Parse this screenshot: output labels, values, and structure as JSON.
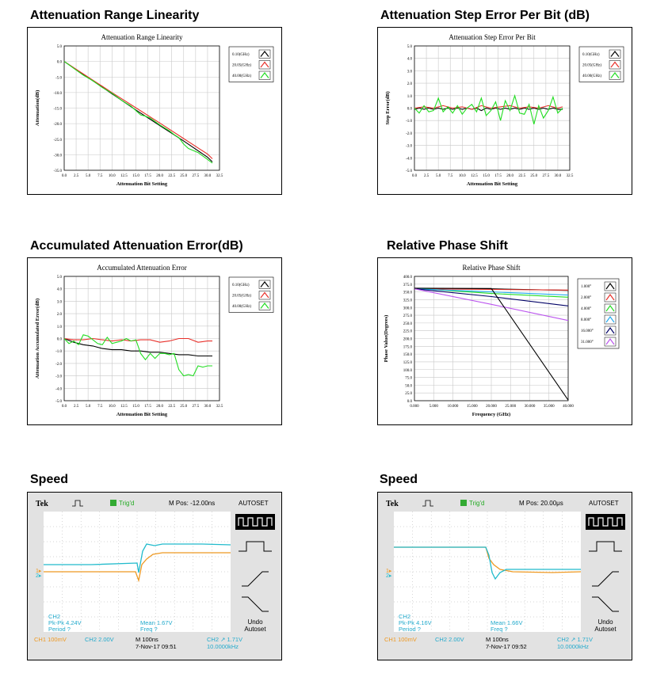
{
  "headings": {
    "h1": "Attenuation Range Linearity",
    "h2": "Attenuation Step Error Per Bit (dB)",
    "h3": "Accumulated Attenuation Error(dB)",
    "h4": "Relative Phase Shift",
    "h5": "Speed",
    "h6": "Speed"
  },
  "colors": {
    "black": "#000000",
    "red": "#e8302a",
    "green": "#22dd22",
    "blue": "#22aaee",
    "navy": "#000066",
    "purple": "#bb55ee",
    "cyan": "#22bbcc",
    "orange": "#ee9922",
    "scope_bg": "#ffffff",
    "scope_bezel": "#e2e2e2"
  },
  "chart_data": [
    {
      "type": "line",
      "title": "Attenuation Range Linearity",
      "xlabel": "Attenuation Bit Setting",
      "ylabel": "Attenuation(dB)",
      "xlim": [
        0,
        32.5
      ],
      "ylim": [
        -35,
        5
      ],
      "xticks": [
        "0.0",
        "2.5",
        "5.0",
        "7.5",
        "10.0",
        "12.5",
        "15.0",
        "17.5",
        "20.0",
        "22.5",
        "25.0",
        "27.5",
        "30.0",
        "32.5"
      ],
      "yticks": [
        "5.0",
        "0.0",
        "-5.0",
        "-10.0",
        "-15.0",
        "-20.0",
        "-25.0",
        "-30.0",
        "-35.0"
      ],
      "grid": true,
      "legend": "right",
      "series": [
        {
          "name": "0.10(GHz)",
          "color": "#000000",
          "x": [
            0,
            5,
            10,
            15,
            20,
            25,
            30,
            31
          ],
          "y": [
            0,
            -5.2,
            -10.4,
            -15.6,
            -20.6,
            -25.6,
            -30.8,
            -32.3
          ]
        },
        {
          "name": "20.05(GHz)",
          "color": "#e8302a",
          "x": [
            0,
            5,
            10,
            15,
            20,
            25,
            30,
            31
          ],
          "y": [
            0,
            -5,
            -10,
            -14.9,
            -19.8,
            -24.8,
            -29.8,
            -31.3
          ]
        },
        {
          "name": "40.00(GHz)",
          "color": "#22dd22",
          "x": [
            0,
            2,
            4,
            6,
            8,
            10,
            12,
            14,
            16,
            17,
            18,
            20,
            22,
            23,
            24,
            25,
            26,
            28,
            30,
            31
          ],
          "y": [
            0,
            -2.2,
            -4.4,
            -6.2,
            -8.4,
            -10.2,
            -12.5,
            -14.4,
            -17.2,
            -17.6,
            -18.2,
            -20.4,
            -22.3,
            -23.5,
            -24.5,
            -26.6,
            -28,
            -29.3,
            -31.5,
            -32.7
          ]
        }
      ]
    },
    {
      "type": "line",
      "title": "Attenuation Step Error Per Bit",
      "xlabel": "Attenuation Bit Setting",
      "ylabel": "Step Error(dB)",
      "xlim": [
        0,
        32.5
      ],
      "ylim": [
        -5,
        5
      ],
      "xticks": [
        "0.0",
        "2.5",
        "5.0",
        "7.5",
        "10.0",
        "12.5",
        "15.0",
        "17.5",
        "20.0",
        "22.5",
        "25.0",
        "27.5",
        "30.0",
        "32.5"
      ],
      "yticks": [
        "5.0",
        "4.0",
        "3.0",
        "2.0",
        "1.0",
        "0.0",
        "-1.0",
        "-2.0",
        "-3.0",
        "-4.0",
        "-5.0"
      ],
      "grid": true,
      "legend": "right",
      "series": [
        {
          "name": "0.10(GHz)",
          "color": "#000000",
          "x": [
            0,
            1,
            2,
            3,
            4,
            5,
            6,
            7,
            8,
            9,
            10,
            11,
            12,
            13,
            14,
            15,
            16,
            17,
            18,
            19,
            20,
            21,
            22,
            23,
            24,
            25,
            26,
            27,
            28,
            29,
            30,
            31
          ],
          "y": [
            -0.1,
            0,
            -0.1,
            0,
            -0.1,
            0,
            -0.1,
            0,
            -0.1,
            0,
            -0.1,
            0,
            -0.1,
            0,
            -0.2,
            0,
            -0.1,
            0,
            -0.1,
            0,
            -0.1,
            0,
            -0.1,
            0,
            -0.1,
            0,
            -0.1,
            0,
            -0.1,
            0,
            -0.1,
            -0.1
          ]
        },
        {
          "name": "20.05(GHz)",
          "color": "#e8302a",
          "x": [
            0,
            2,
            4,
            6,
            8,
            10,
            12,
            14,
            16,
            18,
            20,
            22,
            24,
            26,
            28,
            30,
            31
          ],
          "y": [
            0,
            0.1,
            0,
            0.2,
            0,
            0.1,
            -0.1,
            0.2,
            0,
            0.1,
            0.2,
            0,
            0.1,
            0,
            0.2,
            0,
            0.1
          ]
        },
        {
          "name": "40.00(GHz)",
          "color": "#22dd22",
          "x": [
            0,
            1,
            2,
            3,
            4,
            5,
            6,
            7,
            8,
            9,
            10,
            11,
            12,
            13,
            14,
            15,
            16,
            17,
            18,
            19,
            20,
            21,
            22,
            23,
            24,
            25,
            26,
            27,
            28,
            29,
            30,
            31
          ],
          "y": [
            0,
            -0.4,
            0.2,
            -0.3,
            -0.2,
            0.8,
            -0.3,
            0.1,
            -0.4,
            0.2,
            -0.5,
            0,
            0.3,
            -0.3,
            0.8,
            -0.6,
            -0.2,
            0.5,
            -1,
            0.6,
            -0.2,
            1,
            -0.4,
            -0.5,
            0.3,
            -1.3,
            0.2,
            -0.8,
            -0.2,
            0.9,
            -0.4,
            0
          ]
        }
      ]
    },
    {
      "type": "line",
      "title": "Accumulated Attenuation Error",
      "xlabel": "Attenuation Bit Setting",
      "ylabel": "Attenuation Accumulated Error(dB)",
      "xlim": [
        0,
        32.5
      ],
      "ylim": [
        -5,
        5
      ],
      "xticks": [
        "0.0",
        "2.5",
        "5.0",
        "7.5",
        "10.0",
        "12.5",
        "15.0",
        "17.5",
        "20.0",
        "22.5",
        "25.0",
        "27.5",
        "30.0",
        "32.5"
      ],
      "yticks": [
        "5.0",
        "4.0",
        "3.0",
        "2.0",
        "1.0",
        "0.0",
        "-1.0",
        "-2.0",
        "-3.0",
        "-4.0",
        "-5.0"
      ],
      "grid": true,
      "legend": "right",
      "series": [
        {
          "name": "0.10(GHz)",
          "color": "#000000",
          "x": [
            0,
            2,
            4,
            6,
            8,
            10,
            12,
            14,
            16,
            18,
            20,
            22,
            24,
            26,
            28,
            30,
            31
          ],
          "y": [
            0,
            -0.3,
            -0.5,
            -0.6,
            -0.8,
            -0.9,
            -0.9,
            -1,
            -1,
            -1.1,
            -1.1,
            -1.2,
            -1.3,
            -1.3,
            -1.4,
            -1.4,
            -1.4
          ]
        },
        {
          "name": "20.05(GHz)",
          "color": "#e8302a",
          "x": [
            0,
            2,
            4,
            6,
            8,
            10,
            12,
            14,
            16,
            18,
            20,
            22,
            24,
            26,
            28,
            30,
            31
          ],
          "y": [
            0,
            -0.1,
            -0.1,
            0,
            -0.1,
            -0.2,
            -0.1,
            -0.2,
            -0.1,
            -0.1,
            -0.3,
            -0.2,
            0,
            0,
            -0.3,
            -0.2,
            -0.2
          ]
        },
        {
          "name": "40.00(GHz)",
          "color": "#22dd22",
          "x": [
            0,
            1,
            2,
            3,
            4,
            5,
            6,
            7,
            8,
            9,
            10,
            11,
            12,
            13,
            14,
            15,
            16,
            17,
            18,
            19,
            20,
            21,
            22,
            23,
            24,
            25,
            26,
            27,
            28,
            29,
            30,
            31
          ],
          "y": [
            0,
            -0.4,
            -0.2,
            -0.5,
            0.3,
            0.2,
            -0.1,
            -0.4,
            -0.5,
            0.1,
            -0.4,
            -0.3,
            -0.2,
            0,
            -0.2,
            -0.1,
            -1.2,
            -1.7,
            -1.2,
            -1.6,
            -1.2,
            -1.2,
            -1.3,
            -1.2,
            -2.5,
            -3,
            -2.9,
            -3,
            -2.2,
            -2.3,
            -2.2,
            -2.2
          ]
        }
      ]
    },
    {
      "type": "line",
      "title": "Relative Phase Shift",
      "xlabel": "Frequency (GHz)",
      "ylabel": "Phase Value(Degrees)",
      "xlim": [
        0,
        40
      ],
      "ylim": [
        0,
        400
      ],
      "xticks": [
        "0.000",
        "5.000",
        "10.000",
        "15.000",
        "20.000",
        "25.000",
        "30.000",
        "35.000",
        "40.000"
      ],
      "yticks": [
        "400.0",
        "375.0",
        "350.0",
        "325.0",
        "300.0",
        "275.0",
        "250.0",
        "225.0",
        "200.0",
        "175.0",
        "150.0",
        "125.0",
        "100.0",
        "75.0",
        "50.0",
        "25.0",
        "0.0"
      ],
      "grid": true,
      "legend": "right",
      "series": [
        {
          "name": "1.000°",
          "color": "#000000",
          "x": [
            0,
            20,
            40
          ],
          "y": [
            360,
            360,
            355
          ]
        },
        {
          "name": "2.000°",
          "color": "#e8302a",
          "x": [
            0,
            20,
            40
          ],
          "y": [
            360,
            358,
            356
          ]
        },
        {
          "name": "4.000°",
          "color": "#22dd22",
          "x": [
            0,
            20,
            40
          ],
          "y": [
            362,
            345,
            333
          ]
        },
        {
          "name": "8.000°",
          "color": "#22aaee",
          "x": [
            0,
            20,
            40
          ],
          "y": [
            360,
            350,
            340
          ]
        },
        {
          "name": "16.000°",
          "color": "#000066",
          "x": [
            0,
            20,
            40
          ],
          "y": [
            360,
            335,
            305
          ]
        },
        {
          "name": "31.000°",
          "color": "#bb55ee",
          "x": [
            0,
            20,
            40
          ],
          "y": [
            360,
            310,
            258
          ]
        },
        {
          "name": "",
          "color": "#000000",
          "x": [
            0,
            20,
            40
          ],
          "y": [
            362,
            361,
            2
          ]
        }
      ]
    }
  ],
  "scopes": [
    {
      "brand": "Tek",
      "trig": "Trig'd",
      "mpos": "M Pos: -12.00ns",
      "autoset": "AUTOSET",
      "ch2_label": "CH2",
      "pkpk": "Pk-Pk 4.24V",
      "period": "Period ?",
      "mean": "Mean 1.67V",
      "freq": "Freq ?",
      "undo1": "Undo",
      "undo2": "Autoset",
      "ch1": "CH1  100mV",
      "ch2": "CH2  2.00V",
      "m": "M 100ns",
      "date": "7-Nov-17 09:51",
      "ch2trig": "CH2 ↗ 1.71V",
      "khz": "10.0000kHz",
      "cyan": [
        [
          0,
          712
        ],
        [
          60,
          712
        ],
        [
          118,
          710
        ],
        [
          120,
          722
        ],
        [
          125,
          695
        ],
        [
          130,
          686
        ],
        [
          140,
          688
        ],
        [
          150,
          686
        ],
        [
          200,
          686
        ],
        [
          236,
          687
        ]
      ],
      "orange": [
        [
          0,
          721
        ],
        [
          60,
          721
        ],
        [
          116,
          721
        ],
        [
          120,
          732
        ],
        [
          124,
          712
        ],
        [
          130,
          705
        ],
        [
          138,
          699
        ],
        [
          150,
          697
        ],
        [
          200,
          697
        ],
        [
          236,
          697
        ]
      ]
    },
    {
      "brand": "Tek",
      "trig": "Trig'd",
      "mpos": "M Pos: 20.00μs",
      "autoset": "AUTOSET",
      "ch2_label": "CH2",
      "pkpk": "Pk-Pk 4.16V",
      "period": "Period ?",
      "mean": "Mean 1.66V",
      "freq": "Freq ?",
      "undo1": "Undo",
      "undo2": "Autoset",
      "ch1": "CH1  100mV",
      "ch2": "CH2  2.00V",
      "m": "M 100ns",
      "date": "7-Nov-17 09:52",
      "ch2trig": "CH2 ↗ 1.71V",
      "khz": "10.0000kHz",
      "cyan": [
        [
          0,
          690
        ],
        [
          60,
          690
        ],
        [
          116,
          690
        ],
        [
          120,
          700
        ],
        [
          124,
          722
        ],
        [
          128,
          730
        ],
        [
          134,
          722
        ],
        [
          142,
          718
        ],
        [
          160,
          718
        ],
        [
          236,
          718
        ]
      ],
      "orange": [
        [
          0,
          690
        ],
        [
          60,
          690
        ],
        [
          116,
          690
        ],
        [
          120,
          704
        ],
        [
          126,
          712
        ],
        [
          134,
          718
        ],
        [
          150,
          721
        ],
        [
          200,
          722
        ],
        [
          236,
          721
        ]
      ]
    }
  ]
}
